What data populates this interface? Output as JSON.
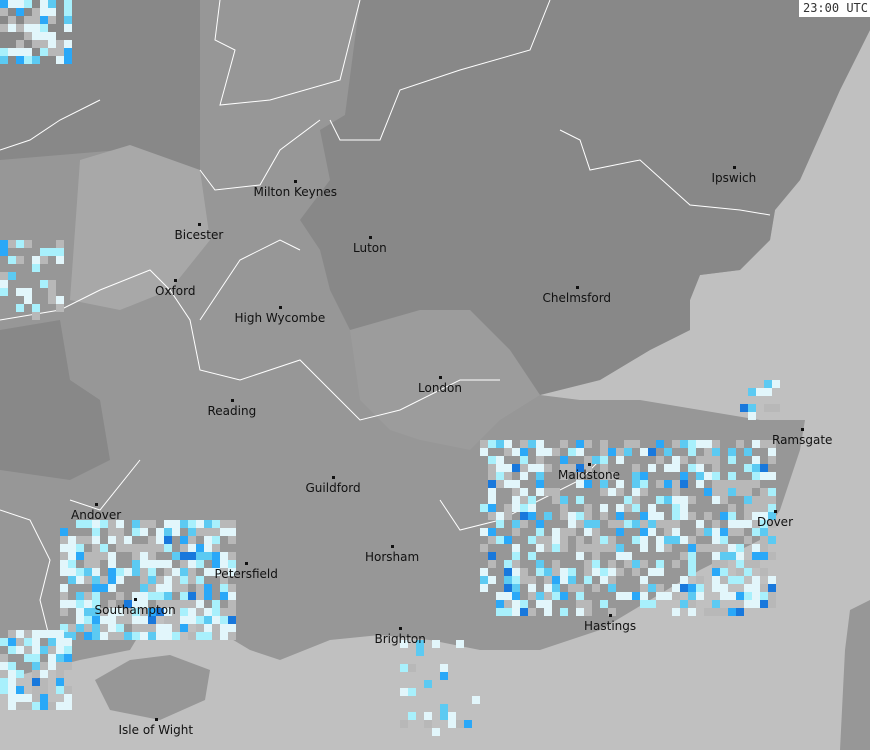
{
  "timestamp": "23:00 UTC",
  "colors": {
    "sea": "#c0c0c0",
    "land": "#979797",
    "land_dark": "#888888",
    "land_light": "#a8a8a8",
    "boundary": "#ffffff",
    "radar_levels": [
      "#b8b8b8",
      "#e2f6fb",
      "#a8f0fc",
      "#5ccaf2",
      "#2aa8f8",
      "#1878dc"
    ]
  },
  "cities": [
    {
      "name": "Milton Keynes"
    },
    {
      "name": "Bicester"
    },
    {
      "name": "Luton"
    },
    {
      "name": "Ipswich"
    },
    {
      "name": "Oxford"
    },
    {
      "name": "Chelmsford"
    },
    {
      "name": "High Wycombe"
    },
    {
      "name": "London"
    },
    {
      "name": "Reading"
    },
    {
      "name": "Ramsgate"
    },
    {
      "name": "Maidstone"
    },
    {
      "name": "Guildford"
    },
    {
      "name": "Andover"
    },
    {
      "name": "Dover"
    },
    {
      "name": "Horsham"
    },
    {
      "name": "Petersfield"
    },
    {
      "name": "Southampton"
    },
    {
      "name": "Hastings"
    },
    {
      "name": "Brighton"
    },
    {
      "name": "Isle of Wight"
    }
  ]
}
